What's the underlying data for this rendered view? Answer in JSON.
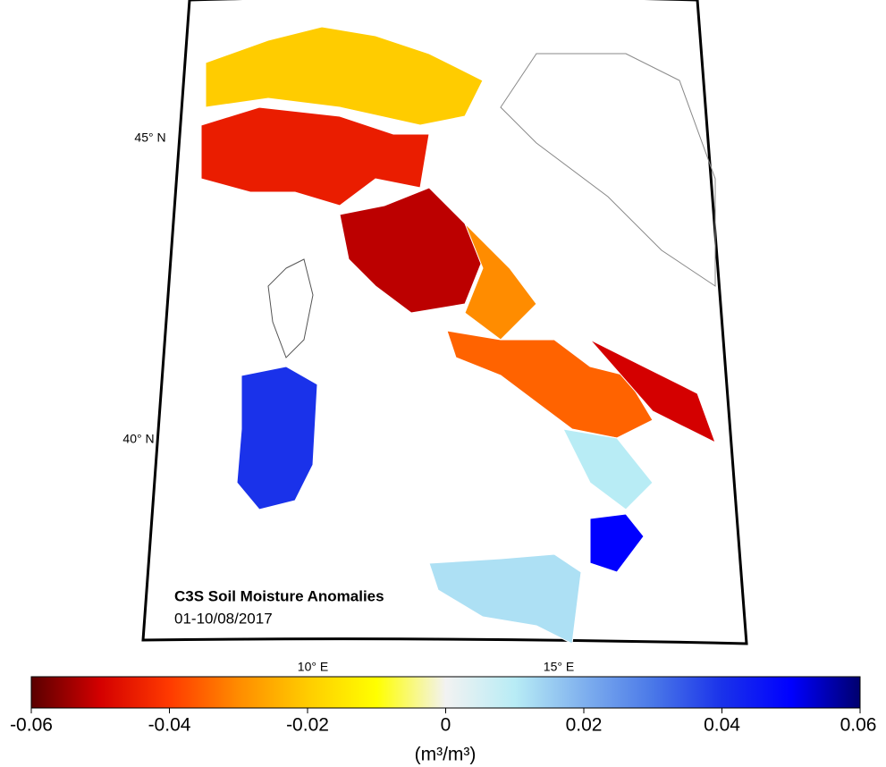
{
  "map": {
    "title": "C3S Soil Moisture Anomalies",
    "date": "01-10/08/2017",
    "lat_labels": [
      "45° N",
      "40° N"
    ],
    "lon_labels": [
      "10° E",
      "15° E"
    ],
    "cells": [
      -0.045,
      -0.02,
      -0.052,
      -0.03,
      -0.035,
      -0.05,
      0.01,
      0.05,
      0.012,
      0.04
    ],
    "colorbar": {
      "lim": [
        -0.06,
        0.06
      ],
      "ticks": [
        -0.06,
        -0.04,
        -0.02,
        0,
        0.02,
        0.04,
        0.06
      ],
      "label": "(m³/m³)",
      "colors": [
        "#5a0000",
        "#d40000",
        "#ff3a00",
        "#ff8c00",
        "#ffcc00",
        "#ffff00",
        "#f2f2f2",
        "#b8ecf5",
        "#7fb0ee",
        "#4a78e8",
        "#1a32ea",
        "#0000ff",
        "#00006e"
      ]
    }
  }
}
